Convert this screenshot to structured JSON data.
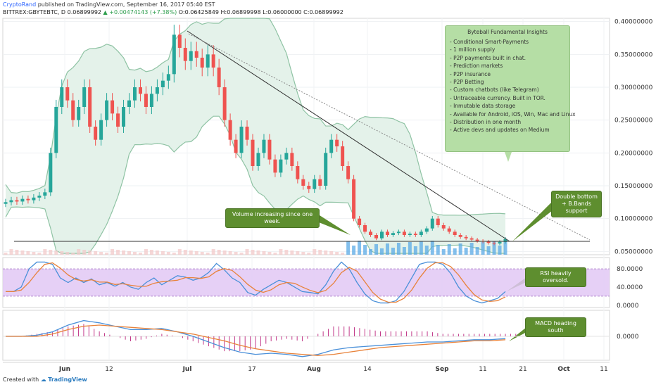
{
  "header": {
    "username": "CryptoRand",
    "published_text": "published on TradingView.com, September 16, 2017 05:40 EST",
    "symbol": "BITTREX:GBYTEBTC, D",
    "last_price": "0.06899992",
    "change": "+0.00474143 (+7.38%)",
    "ohlc_text": "O:0.06425849 H:0.06899998 L:0.06000000 C:0.06899992"
  },
  "footer": {
    "created_with": "Created with",
    "brand": "TradingView"
  },
  "insights_box": {
    "title": "Byteball Fundamental Insights",
    "items": [
      "- Conditional Smart-Payments",
      "- 1 million supply",
      "- P2P payments built in chat.",
      "- Prediction markets",
      "- P2P insurance",
      "- P2P Betting",
      "- Custom chatbots (like Telegram)",
      "- Untraceable currency. Built in TOR.",
      "- Inmutable data storage",
      "- Available for Android, iOS, Win, Mac and Linux",
      "- Distribution in one month",
      "- Active devs and updates on Medium"
    ]
  },
  "callouts": {
    "volume": "Volume increasing since one week.",
    "double_bottom": "Double bottom + B.Bands support",
    "rsi": "RSI heavily oversold.",
    "macd": "MACD heading south"
  },
  "chart_data": {
    "type": "candlestick",
    "symbol": "BITTREX:GBYTEBTC",
    "timeframe": "D",
    "x_tick_labels": [
      "Jun",
      "12",
      "Jul",
      "17",
      "Aug",
      "14",
      "Sep",
      "11",
      "21",
      "Oct",
      "11"
    ],
    "price_axis": {
      "ticks": [
        "0.40000000",
        "0.35000000",
        "0.30000000",
        "0.25000000",
        "0.20000000",
        "0.15000000",
        "0.10000000",
        "0.05000000"
      ],
      "ylim": [
        0.045,
        0.405
      ]
    },
    "rsi_axis": {
      "ticks": [
        "80.0000",
        "40.0000",
        "0.0000"
      ],
      "ylim": [
        -5,
        105
      ]
    },
    "macd_axis": {
      "ticks": [
        "0.0000"
      ]
    },
    "close_prices": [
      0.125,
      0.128,
      0.126,
      0.13,
      0.128,
      0.132,
      0.135,
      0.14,
      0.2,
      0.27,
      0.3,
      0.28,
      0.25,
      0.27,
      0.3,
      0.24,
      0.22,
      0.25,
      0.28,
      0.26,
      0.24,
      0.27,
      0.28,
      0.3,
      0.29,
      0.27,
      0.29,
      0.3,
      0.31,
      0.32,
      0.38,
      0.36,
      0.34,
      0.355,
      0.345,
      0.33,
      0.35,
      0.33,
      0.3,
      0.25,
      0.22,
      0.2,
      0.24,
      0.22,
      0.18,
      0.2,
      0.22,
      0.19,
      0.17,
      0.19,
      0.2,
      0.18,
      0.16,
      0.15,
      0.145,
      0.16,
      0.15,
      0.2,
      0.22,
      0.21,
      0.18,
      0.16,
      0.1,
      0.09,
      0.08,
      0.075,
      0.07,
      0.08,
      0.075,
      0.078,
      0.08,
      0.075,
      0.077,
      0.075,
      0.08,
      0.085,
      0.1,
      0.09,
      0.085,
      0.08,
      0.075,
      0.072,
      0.07,
      0.068,
      0.066,
      0.065,
      0.063,
      0.062,
      0.0645,
      0.069
    ],
    "rsi_values": [
      30,
      30,
      40,
      80,
      95,
      95,
      90,
      60,
      50,
      60,
      50,
      58,
      45,
      50,
      42,
      50,
      40,
      35,
      50,
      60,
      45,
      55,
      65,
      62,
      55,
      60,
      72,
      92,
      78,
      60,
      50,
      28,
      22,
      35,
      45,
      55,
      50,
      40,
      30,
      28,
      25,
      45,
      75,
      95,
      80,
      50,
      25,
      10,
      5,
      5,
      10,
      30,
      60,
      90,
      95,
      95,
      90,
      70,
      40,
      20,
      10,
      5,
      10,
      15,
      30
    ],
    "macd_line": [
      0,
      0,
      0.001,
      0.004,
      0.01,
      0.014,
      0.012,
      0.009,
      0.006,
      0.006,
      0.007,
      0.004,
      0,
      -0.005,
      -0.01,
      -0.014,
      -0.016,
      -0.015,
      -0.016,
      -0.018,
      -0.016,
      -0.012,
      -0.01,
      -0.009,
      -0.008,
      -0.007,
      -0.006,
      -0.005,
      -0.005,
      -0.004,
      -0.003,
      -0.003,
      -0.002
    ],
    "signal_line": [
      0,
      0,
      0,
      0.002,
      0.006,
      0.009,
      0.01,
      0.009,
      0.008,
      0.007,
      0.006,
      0.004,
      0.002,
      -0.001,
      -0.004,
      -0.008,
      -0.011,
      -0.013,
      -0.015,
      -0.016,
      -0.017,
      -0.016,
      -0.014,
      -0.012,
      -0.01,
      -0.009,
      -0.008,
      -0.007,
      -0.006,
      -0.005,
      -0.004,
      -0.004,
      -0.003
    ]
  },
  "colors": {
    "up": "#26a69a",
    "down": "#ef5350",
    "bb_fill": "#e4f2ea",
    "bb_line": "#8fc3a4",
    "rsi_band": "#e2c8f4",
    "rsi_line": "#4a90d9",
    "rsi_sig": "#e8823a",
    "vol": "#5aa9e6",
    "annot": "#5e8e2f",
    "box": "#b5dea5"
  }
}
